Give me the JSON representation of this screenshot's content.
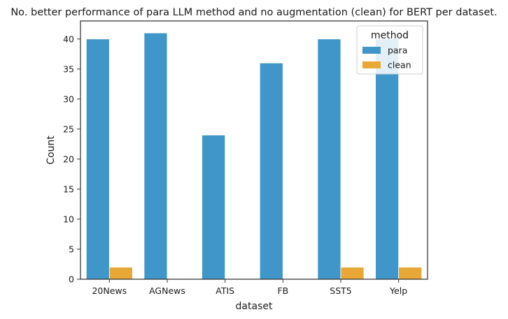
{
  "chart_data": {
    "type": "bar",
    "title": "No. better performance of para LLM method and no augmentation (clean) for BERT per dataset.",
    "xlabel": "dataset",
    "ylabel": "Count",
    "categories": [
      "20News",
      "AGNews",
      "ATIS",
      "FB",
      "SST5",
      "Yelp"
    ],
    "series": [
      {
        "name": "para",
        "values": [
          40,
          41,
          24,
          36,
          40,
          40
        ],
        "color": "#4096c8"
      },
      {
        "name": "clean",
        "values": [
          2,
          0,
          0,
          0,
          2,
          2
        ],
        "color": "#e8a838"
      }
    ],
    "ylim": [
      0,
      43
    ],
    "yticks": [
      0,
      5,
      10,
      15,
      20,
      25,
      30,
      35,
      40
    ],
    "grid": false,
    "legend": {
      "title": "method",
      "placement": "top-right"
    }
  }
}
